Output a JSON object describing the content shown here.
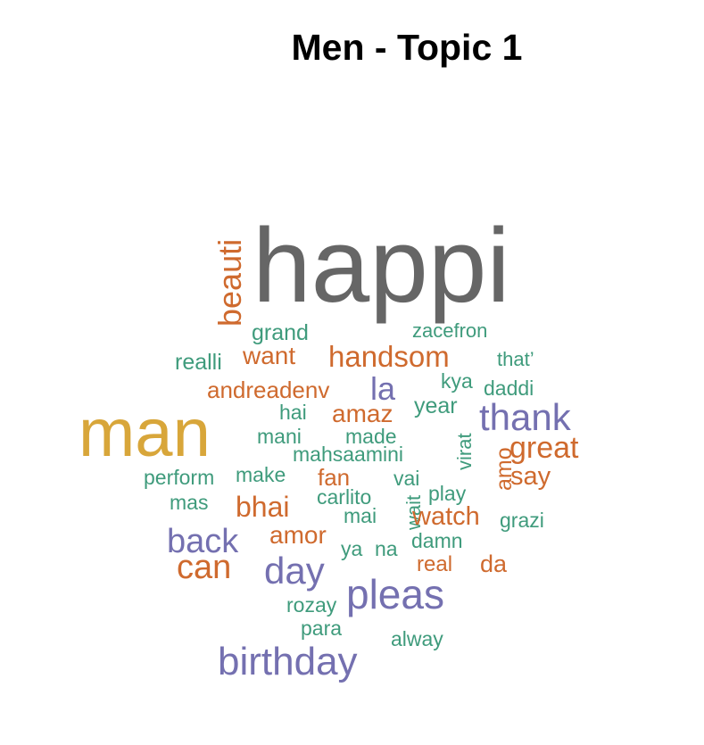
{
  "title": "Men - Topic 1",
  "palette": {
    "gray": "#666666",
    "gold": "#d8a63a",
    "orange": "#cf6a2e",
    "purple": "#7470b0",
    "green": "#3f9b7c"
  },
  "words": [
    {
      "text": "happi",
      "color": "gray"
    },
    {
      "text": "man",
      "color": "gold"
    },
    {
      "text": "beauti",
      "color": "orange"
    },
    {
      "text": "grand",
      "color": "green"
    },
    {
      "text": "zacefron",
      "color": "green"
    },
    {
      "text": "realli",
      "color": "green"
    },
    {
      "text": "want",
      "color": "orange"
    },
    {
      "text": "handsom",
      "color": "orange"
    },
    {
      "text": "that’",
      "color": "green"
    },
    {
      "text": "andreadenv",
      "color": "orange"
    },
    {
      "text": "la",
      "color": "purple"
    },
    {
      "text": "kya",
      "color": "green"
    },
    {
      "text": "daddi",
      "color": "green"
    },
    {
      "text": "hai",
      "color": "green"
    },
    {
      "text": "amaz",
      "color": "orange"
    },
    {
      "text": "year",
      "color": "green"
    },
    {
      "text": "thank",
      "color": "purple"
    },
    {
      "text": "mani",
      "color": "green"
    },
    {
      "text": "made",
      "color": "green"
    },
    {
      "text": "great",
      "color": "orange"
    },
    {
      "text": "mahsaamini",
      "color": "green"
    },
    {
      "text": "virat",
      "color": "green"
    },
    {
      "text": "amo",
      "color": "orange"
    },
    {
      "text": "perform",
      "color": "green"
    },
    {
      "text": "make",
      "color": "green"
    },
    {
      "text": "fan",
      "color": "orange"
    },
    {
      "text": "say",
      "color": "orange"
    },
    {
      "text": "vai",
      "color": "green"
    },
    {
      "text": "mas",
      "color": "green"
    },
    {
      "text": "bhai",
      "color": "orange"
    },
    {
      "text": "carlito",
      "color": "green"
    },
    {
      "text": "play",
      "color": "green"
    },
    {
      "text": "mai",
      "color": "green"
    },
    {
      "text": "wait",
      "color": "green"
    },
    {
      "text": "watch",
      "color": "orange"
    },
    {
      "text": "grazi",
      "color": "green"
    },
    {
      "text": "back",
      "color": "purple"
    },
    {
      "text": "amor",
      "color": "orange"
    },
    {
      "text": "damn",
      "color": "green"
    },
    {
      "text": "ya",
      "color": "green"
    },
    {
      "text": "na",
      "color": "green"
    },
    {
      "text": "can",
      "color": "orange"
    },
    {
      "text": "day",
      "color": "purple"
    },
    {
      "text": "real",
      "color": "orange"
    },
    {
      "text": "da",
      "color": "orange"
    },
    {
      "text": "pleas",
      "color": "purple"
    },
    {
      "text": "rozay",
      "color": "green"
    },
    {
      "text": "para",
      "color": "green"
    },
    {
      "text": "alway",
      "color": "green"
    },
    {
      "text": "birthday",
      "color": "purple"
    }
  ]
}
